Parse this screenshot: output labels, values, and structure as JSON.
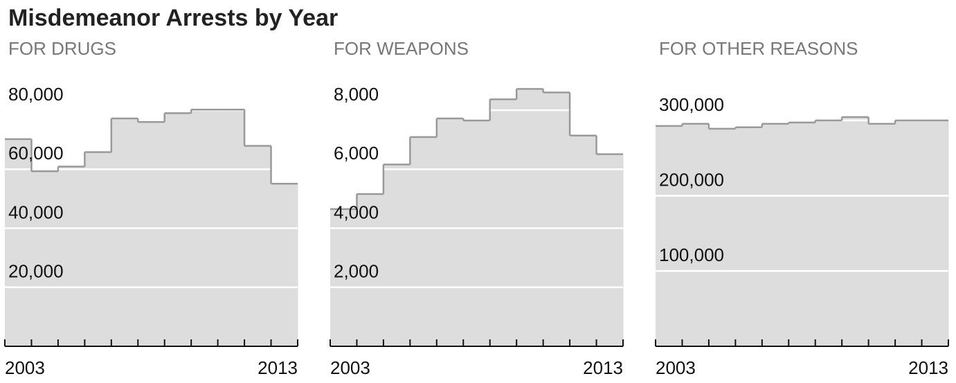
{
  "title": "Misdemeanor Arrests by Year",
  "chart_data": [
    {
      "type": "step-area",
      "title": "FOR DRUGS",
      "categories": [
        "2003",
        null,
        null,
        null,
        null,
        null,
        null,
        null,
        null,
        null,
        "2013"
      ],
      "values": [
        70200,
        59300,
        60900,
        65800,
        77200,
        76000,
        79000,
        80200,
        80200,
        67900,
        55100
      ],
      "ylim": [
        0,
        88000
      ],
      "yticks": [
        {
          "value": 20000,
          "label": "20,000"
        },
        {
          "value": 40000,
          "label": "40,000"
        },
        {
          "value": 60000,
          "label": "60,000"
        },
        {
          "value": 80000,
          "label": "80,000"
        }
      ],
      "color": "#dddddd",
      "grid": true
    },
    {
      "type": "step-area",
      "title": "FOR WEAPONS",
      "categories": [
        "2003",
        null,
        null,
        null,
        null,
        null,
        null,
        null,
        null,
        null,
        "2013"
      ],
      "values": [
        4650,
        5160,
        6160,
        7090,
        7720,
        7650,
        8370,
        8720,
        8600,
        7140,
        6510
      ],
      "ylim": [
        0,
        8800
      ],
      "yticks": [
        {
          "value": 2000,
          "label": "2,000"
        },
        {
          "value": 4000,
          "label": "4,000"
        },
        {
          "value": 6000,
          "label": "6,000"
        },
        {
          "value": 8000,
          "label": "8,000"
        }
      ],
      "color": "#dddddd",
      "grid": true
    },
    {
      "type": "step-area",
      "title": "FOR OTHER REASONS",
      "categories": [
        "2003",
        null,
        null,
        null,
        null,
        null,
        null,
        null,
        null,
        null,
        "2013"
      ],
      "values": [
        292700,
        295500,
        289000,
        291000,
        295500,
        297300,
        300000,
        304500,
        295500,
        300000,
        300000
      ],
      "ylim": [
        0,
        345000
      ],
      "yticks": [
        {
          "value": 100000,
          "label": "100,000"
        },
        {
          "value": 200000,
          "label": "200,000"
        },
        {
          "value": 300000,
          "label": "300,000"
        }
      ],
      "color": "#dddddd",
      "grid": true
    }
  ]
}
